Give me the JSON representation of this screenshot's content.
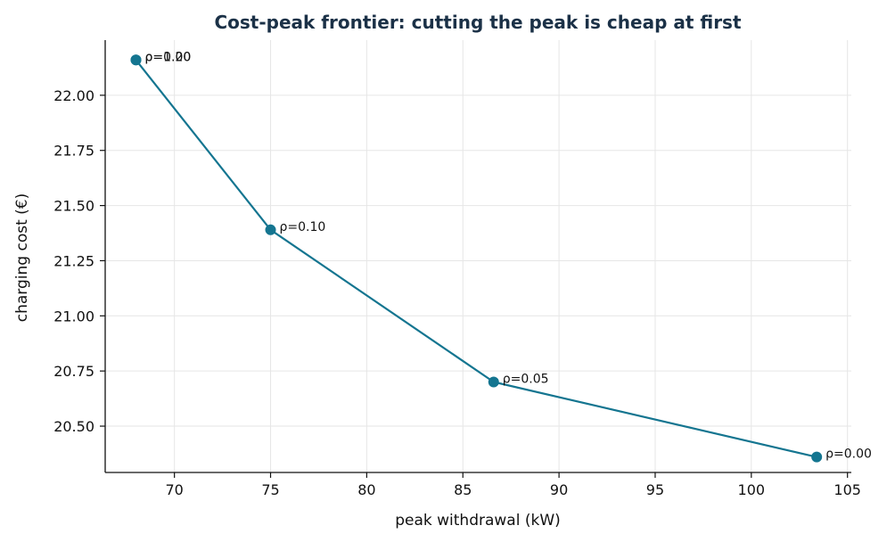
{
  "chart_data": {
    "type": "line",
    "title": "Cost-peak frontier: cutting the peak is cheap at first",
    "xlabel": "peak withdrawal (kW)",
    "ylabel": "charging cost (€)",
    "xlim": [
      66.4,
      105.2
    ],
    "ylim": [
      20.29,
      22.25
    ],
    "xticks": [
      70,
      75,
      80,
      85,
      90,
      95,
      100,
      105
    ],
    "xtick_labels": [
      "70",
      "75",
      "80",
      "85",
      "90",
      "95",
      "100",
      "105"
    ],
    "yticks": [
      20.5,
      20.75,
      21.0,
      21.25,
      21.5,
      21.75,
      22.0
    ],
    "ytick_labels": [
      "20.50",
      "20.75",
      "21.00",
      "21.25",
      "21.50",
      "21.75",
      "22.00"
    ],
    "grid": true,
    "series": [
      {
        "color": "#147590",
        "points": [
          {
            "x": 68.0,
            "y": 22.16,
            "label": "ρ=0.20"
          },
          {
            "x": 68.0,
            "y": 22.16,
            "label": "ρ=1.00"
          },
          {
            "x": 75.0,
            "y": 21.39,
            "label": "ρ=0.10"
          },
          {
            "x": 86.6,
            "y": 20.7,
            "label": "ρ=0.05"
          },
          {
            "x": 103.4,
            "y": 20.36,
            "label": "ρ=0.00"
          }
        ]
      }
    ]
  }
}
